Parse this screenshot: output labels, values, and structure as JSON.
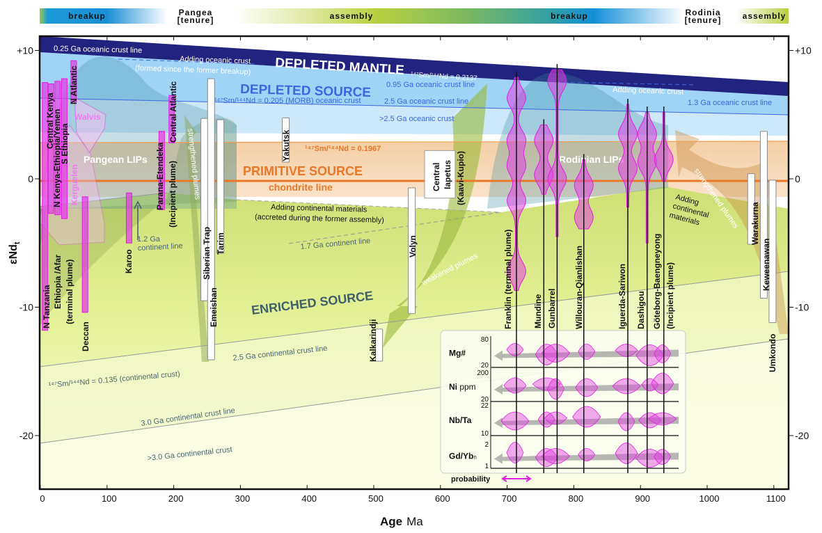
{
  "timeline": {
    "breakup_1": "breakup",
    "pangea": "Pangea",
    "pangea_tenure": "[tenure]",
    "assembly_1": "assembly",
    "breakup_2": "breakup",
    "rodinia": "Rodinia",
    "rodinia_tenure": "[tenure]",
    "assembly_2": "assembly"
  },
  "axes": {
    "x_label": "Age",
    "x_unit": "Ma",
    "y_label": "εNd",
    "y_sub": "t",
    "x_ticks": [
      0,
      100,
      200,
      300,
      400,
      500,
      600,
      700,
      800,
      900,
      1000,
      1100
    ],
    "y_ticks": [
      {
        "value": 10,
        "label": "+10"
      },
      {
        "value": 0,
        "label": "0"
      },
      {
        "value": -10,
        "label": "-10"
      },
      {
        "value": -20,
        "label": "-20"
      }
    ],
    "x_range": [
      0,
      1120
    ],
    "y_range": [
      -24.5,
      11
    ]
  },
  "reservoirs": {
    "depleted_mantle": "DEPLETED MANTLE",
    "depleted_mantle_ratio": "¹⁴⁷Sm/¹⁴⁴Nd = 0.2137",
    "depleted_source": "DEPLETED SOURCE",
    "morb_ratio": "¹⁴⁷Sm/¹⁴⁴Nd = 0.205 (MORB) oceanic crust",
    "primitive_source": "PRIMITIVE SOURCE",
    "primitive_ratio": "¹⁴⁷Sm/¹⁴⁴Nd = 0.1967",
    "chondrite": "chondrite line",
    "enriched_source": "ENRICHED SOURCE",
    "continental_ratio": "¹⁴⁷Sm/¹⁴⁴Nd = 0.135 (continental crust)"
  },
  "annotations": {
    "oc_025": "0.25 Ga oceanic crust line",
    "adding_oc_1": "Adding oceanic crust",
    "adding_oc_1b": "(formed since the former breakup)",
    "oc_095": "0.95 Ga oceanic crust line",
    "oc_25": "2.5 Ga oceanic crust line",
    "oc_gt25": ">2.5 Ga oceanic crust",
    "adding_oc_2": "Adding oceanic crust",
    "oc_13": "1.3 Ga oceanic crust line",
    "adding_cm_1": "Adding continental materials",
    "adding_cm_1b": "(accreted during the former assembly)",
    "cl_17": "1.7 Ga continent line",
    "cl_12a": "1.2 Ga",
    "cl_12b": "continent line",
    "ccl_25": "2.5 Ga continental crust line",
    "ccl_30": "3.0 Ga continental crust line",
    "cc_gt30": ">3.0 Ga continental crust",
    "pangean_lips": "Pangean LIPs",
    "rodinian_lips": "Rodinian LIPs",
    "strengthened_1": "strengthened plumes",
    "strengthened_2": "strengthened plumes",
    "weakened": "weakened plumes",
    "adding_cm_2a": "Adding",
    "adding_cm_2b": "continental",
    "adding_cm_2c": "materials",
    "walvis": "Walvis",
    "kerguelen": "Kerguelen",
    "ethiopia_afar": "Ethiopia /Afar",
    "terminal_plume": "(terminal plume)",
    "incipient_plume": "(Incipient plume)",
    "central_iapetus_a": "Central",
    "central_iapetus_b": "Iapetus",
    "central_iapetus_c": "(Kaavi-Kupio)",
    "incipient_plume_2": "(Incipient plume)"
  },
  "pangean_lips": [
    {
      "name": "N Tanzania",
      "age": 7,
      "end_max": 7.5,
      "end_min": -11.8
    },
    {
      "name": "Central Kenya",
      "age": 16,
      "end_max": 7.4,
      "end_min": -2.7
    },
    {
      "name": "N Kenya-Ethiopia/Yemen",
      "age": 26,
      "end_max": 7.6,
      "end_min": -2.8
    },
    {
      "name": "S Ethiopia",
      "age": 36,
      "end_max": 7.8,
      "end_min": -3.1
    },
    {
      "name": "N Atlantic",
      "age": 50,
      "end_max": 9.2,
      "end_min": 6.0
    },
    {
      "name": "Deccan",
      "age": 67,
      "end_max": -1.4,
      "end_min": -10.4
    },
    {
      "name": "Karoo",
      "age": 133,
      "end_max": -1.1,
      "end_min": -5.0
    },
    {
      "name": "Parana-Etendeka",
      "age": 182,
      "end_max": 3.7,
      "end_min": -2.4
    },
    {
      "name": "Central Atlantic",
      "age": 197,
      "end_max": 6.5,
      "end_min": 2.8
    }
  ],
  "other_lips": [
    {
      "name": "Siberian Trap",
      "age": 246,
      "end_max": 4.7,
      "end_min": -9.5
    },
    {
      "name": "Emeishan",
      "age": 256,
      "end_max": 7.8,
      "end_min": -14.1
    },
    {
      "name": "Tarim",
      "age": 270,
      "end_max": 4.6,
      "end_min": -5.8
    },
    {
      "name": "Yakutsk",
      "age": 368,
      "end_max": 4.75,
      "end_min": 1.3
    },
    {
      "name": "Kalkarindji",
      "age": 508,
      "end_max": -11.7,
      "end_min": -14.2
    },
    {
      "name": "Volyn",
      "age": 557,
      "end_max": -0.7,
      "end_min": -10.5
    },
    {
      "name": "Warakurna",
      "age": 1066,
      "end_max": 0.4,
      "end_min": -5.1
    },
    {
      "name": "Keweenawan",
      "age": 1085,
      "end_max": 3.7,
      "end_min": -9.3
    },
    {
      "name": "Umkondo",
      "age": 1098,
      "end_max": -0.1,
      "end_min": -11.2
    }
  ],
  "central_iapetus": {
    "age": 600,
    "end_max": 2.2,
    "end_min": -1.5
  },
  "rodinian_lips": [
    {
      "name": "Franklin (terminal plume)",
      "age": 714,
      "end_max": 7.9,
      "end_min": -8.8,
      "peaks": [
        6.3,
        3,
        1,
        -1.7,
        -7.2
      ]
    },
    {
      "name": "Mundine",
      "age": 755,
      "end_max": 4.2,
      "end_min": -1.2,
      "peaks": [
        0.3,
        3
      ]
    },
    {
      "name": "Gunbarrel",
      "age": 775,
      "end_max": 8.5,
      "end_min": -4.5,
      "peaks": [
        7.6,
        0
      ]
    },
    {
      "name": "Willouran-Qianlishan",
      "age": 815,
      "end_max": 1.5,
      "end_min": -3.9,
      "peaks": [
        -0.5,
        -3
      ]
    },
    {
      "name": "Iguerda-Sariwon",
      "age": 881,
      "end_max": 5.8,
      "end_min": -2.2,
      "peaks": [
        0.8,
        3.5
      ]
    },
    {
      "name": "Dashigou",
      "age": 910,
      "end_max": 5.2,
      "end_min": -5.0,
      "peaks": [
        3.5,
        1.3
      ]
    },
    {
      "name": "Göteborg-Baengneyong",
      "age": 935,
      "end_max": 5.2,
      "end_min": -0.3,
      "peaks": [
        1.5
      ]
    }
  ],
  "inset": {
    "rows": [
      {
        "label": "Mg#",
        "unit": "",
        "max": "80",
        "min": "20"
      },
      {
        "label": "Ni",
        "unit": " ppm",
        "max": "200",
        "min": "20"
      },
      {
        "label": "Nb/Ta",
        "unit": "",
        "max": "22",
        "min": "10"
      },
      {
        "label": "Gd/Yb",
        "unit": "n",
        "max": "2",
        "min": "1"
      }
    ],
    "probability": "probability"
  },
  "colors": {
    "depleted_mantle": "#22227f",
    "depleted_source": "#9fd4f6",
    "primitive_source": "#f7d9b8",
    "chondrite": "#e8782a",
    "enriched_source": "#d8e88a",
    "lip_magenta": "#e040e0"
  }
}
